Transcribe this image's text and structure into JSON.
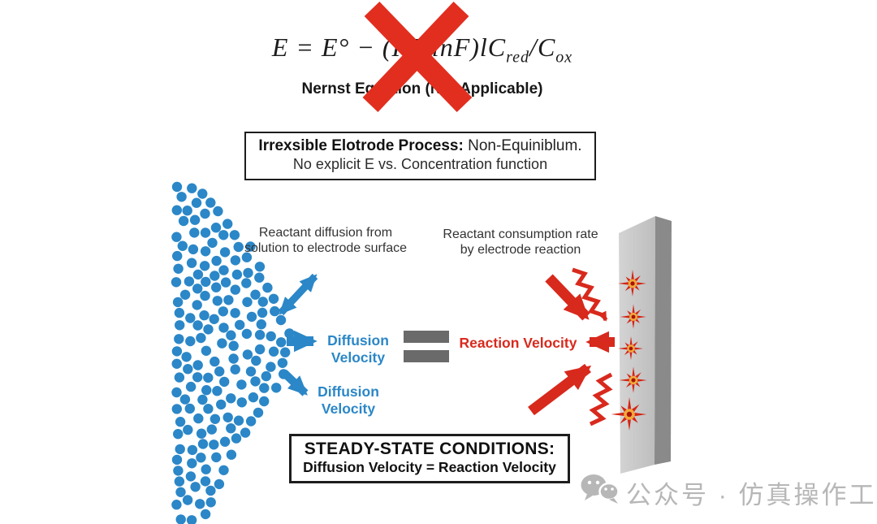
{
  "colors": {
    "blue": "#2b87c7",
    "red": "#d8291d",
    "cross_red": "#e22e1f",
    "equals_gray": "#6a6a6a",
    "slab_front": "#c9c9c9",
    "slab_side": "#8a8a8a",
    "spark_spike": "#d42415",
    "spark_glow": "#f2a93b",
    "spark_core": "#a81208",
    "text_dark": "#333333",
    "box_border": "#1d1d1d",
    "watermark_gray": "#b7b7b7"
  },
  "equation": {
    "lhs": "E = E° − (RT/lnF)lC",
    "sub1": "red",
    "mid": "/C",
    "sub2": "ox",
    "caption": "Nernst Equation (Not Applicable)"
  },
  "process_box": {
    "bold": "Irrexsible Elotrode Process:",
    "rest": " Non-Equiniblum.",
    "line2": "No explicit E vs. Concentration function"
  },
  "annotations": {
    "diffusion_note": "Reactant diffusion from\nsolution to electrode surface",
    "consumption_note": "Reactant consumption rate\nby electrode reaction",
    "diffusion_velocity_upper": "Diffusion\nVelocity",
    "diffusion_velocity_lower": "Diffusion\nVelocity",
    "reaction_velocity": "Reaction Velocity"
  },
  "steady_box": {
    "line1": "STEADY-STATE CONDITIONS:",
    "line2": "Diffusion Velocity = Reaction Velocity"
  },
  "watermark": {
    "icon": "wechat-icon",
    "text": "公众号 · 仿真操作工"
  }
}
